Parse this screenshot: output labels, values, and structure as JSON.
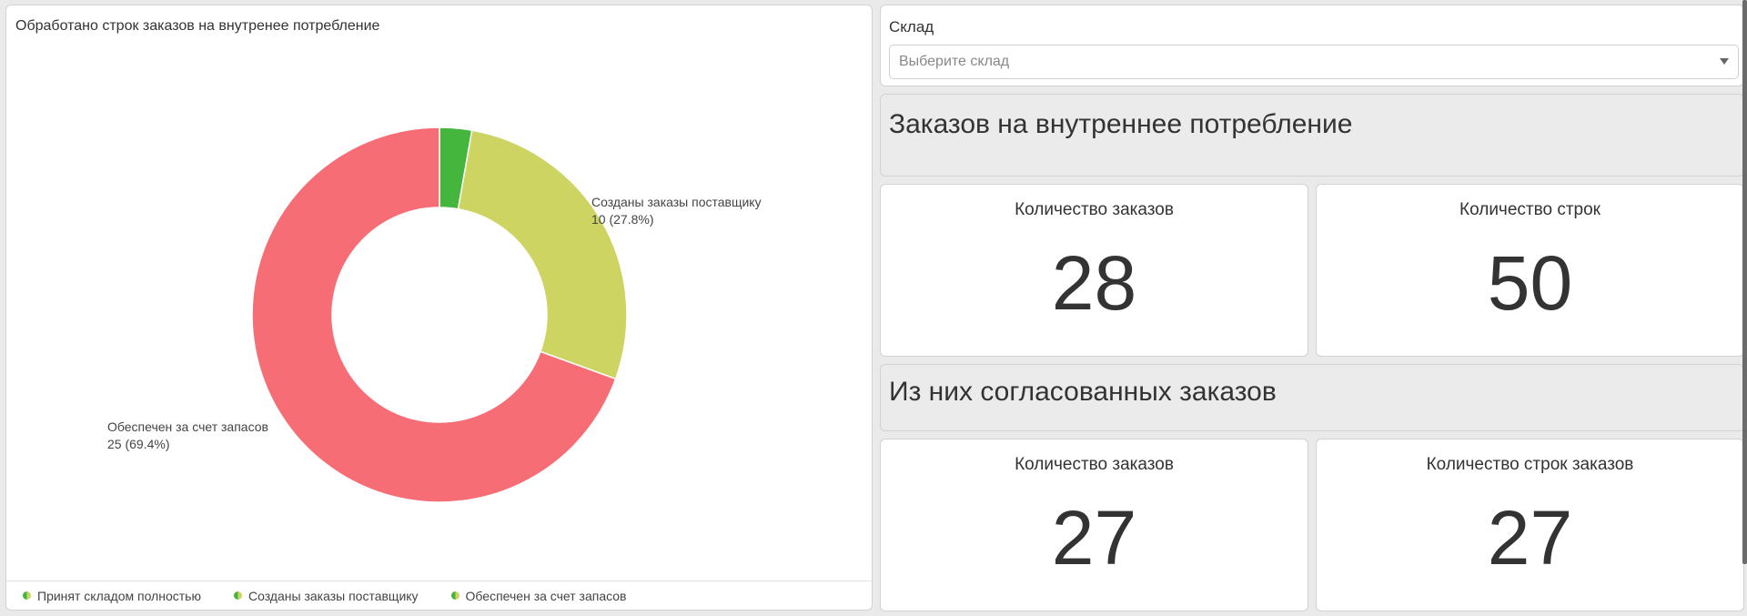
{
  "chart_panel": {
    "title": "Обработано строк заказов на внутренее потребление"
  },
  "chart_data": {
    "type": "pie",
    "donut": true,
    "title": "Обработано строк заказов на внутренее потребление",
    "legend_position": "bottom",
    "slices": [
      {
        "name": "Принят складом полностью",
        "value": 1,
        "color": "#45b63d",
        "label": "",
        "label_value": ""
      },
      {
        "name": "Созданы заказы поставщику",
        "value": 10,
        "color": "#cdd462",
        "label": "Созданы заказы поставщику",
        "label_value": "10 (27.8%)"
      },
      {
        "name": "Обеспечен за счет запасов",
        "value": 25,
        "color": "#f76d75",
        "label": "Обеспечен за счет запасов",
        "label_value": "25 (69.4%)"
      }
    ]
  },
  "legend": [
    {
      "label": "Принят складом полностью"
    },
    {
      "label": "Созданы заказы поставщику"
    },
    {
      "label": "Обеспечен за счет запасов"
    }
  ],
  "filter": {
    "label": "Склад",
    "placeholder": "Выберите склад"
  },
  "section1": {
    "title": "Заказов на внутреннее потребление",
    "orders_label": "Количество заказов",
    "orders_value": "28",
    "lines_label": "Количество строк",
    "lines_value": "50"
  },
  "section2": {
    "title": "Из них согласованных заказов",
    "orders_label": "Количество заказов",
    "orders_value": "27",
    "lines_label": "Количество строк заказов",
    "lines_value": "27"
  }
}
